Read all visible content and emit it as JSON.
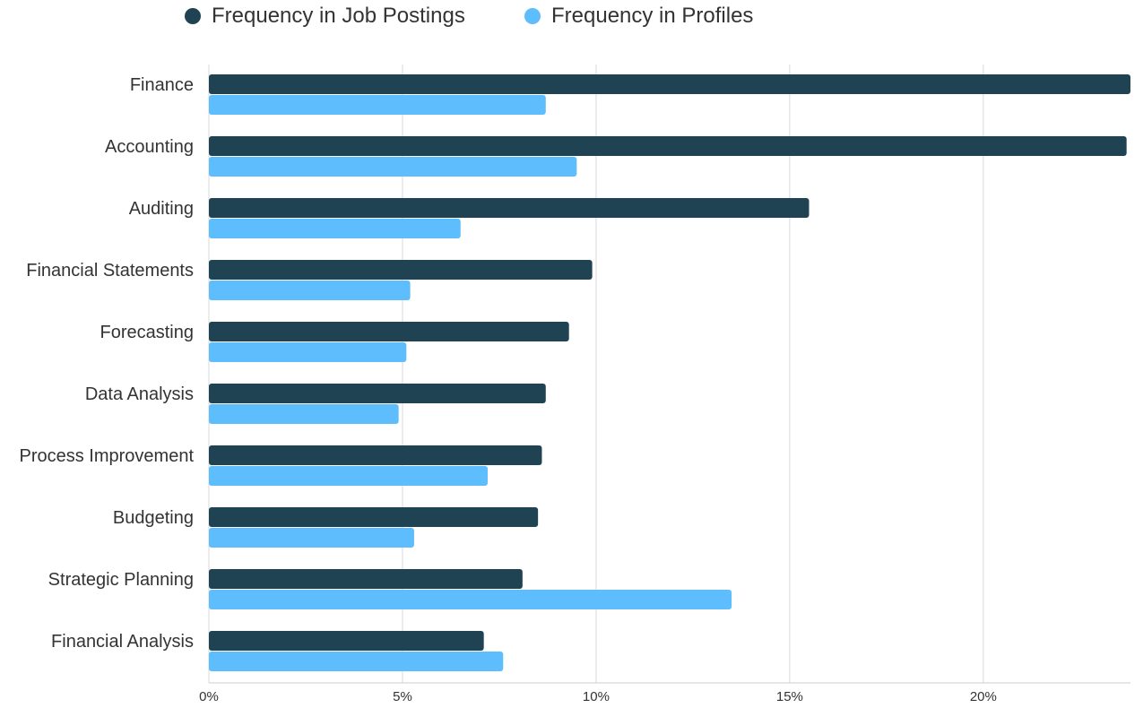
{
  "legend": {
    "postings_label": "Frequency in Job Postings",
    "profiles_label": "Frequency in Profiles"
  },
  "colors": {
    "postings": "#204354",
    "profiles": "#5ebdfc",
    "grid": "#d9d9d9"
  },
  "chart_data": {
    "type": "bar",
    "orientation": "horizontal",
    "categories": [
      "Finance",
      "Accounting",
      "Auditing",
      "Financial Statements",
      "Forecasting",
      "Data Analysis",
      "Process Improvement",
      "Budgeting",
      "Strategic Planning",
      "Financial Analysis"
    ],
    "series": [
      {
        "name": "Frequency in Job Postings",
        "values": [
          23.8,
          23.7,
          15.5,
          9.9,
          9.3,
          8.7,
          8.6,
          8.5,
          8.1,
          7.1
        ]
      },
      {
        "name": "Frequency in Profiles",
        "values": [
          8.7,
          9.5,
          6.5,
          5.2,
          5.1,
          4.9,
          7.2,
          5.3,
          13.5,
          7.6
        ]
      }
    ],
    "x_ticks": [
      "0%",
      "5%",
      "10%",
      "15%",
      "20%"
    ],
    "x_tick_values": [
      0,
      5,
      10,
      15,
      20
    ],
    "xlim": [
      0,
      23.8
    ],
    "grid": true,
    "legend_position": "top-center"
  }
}
